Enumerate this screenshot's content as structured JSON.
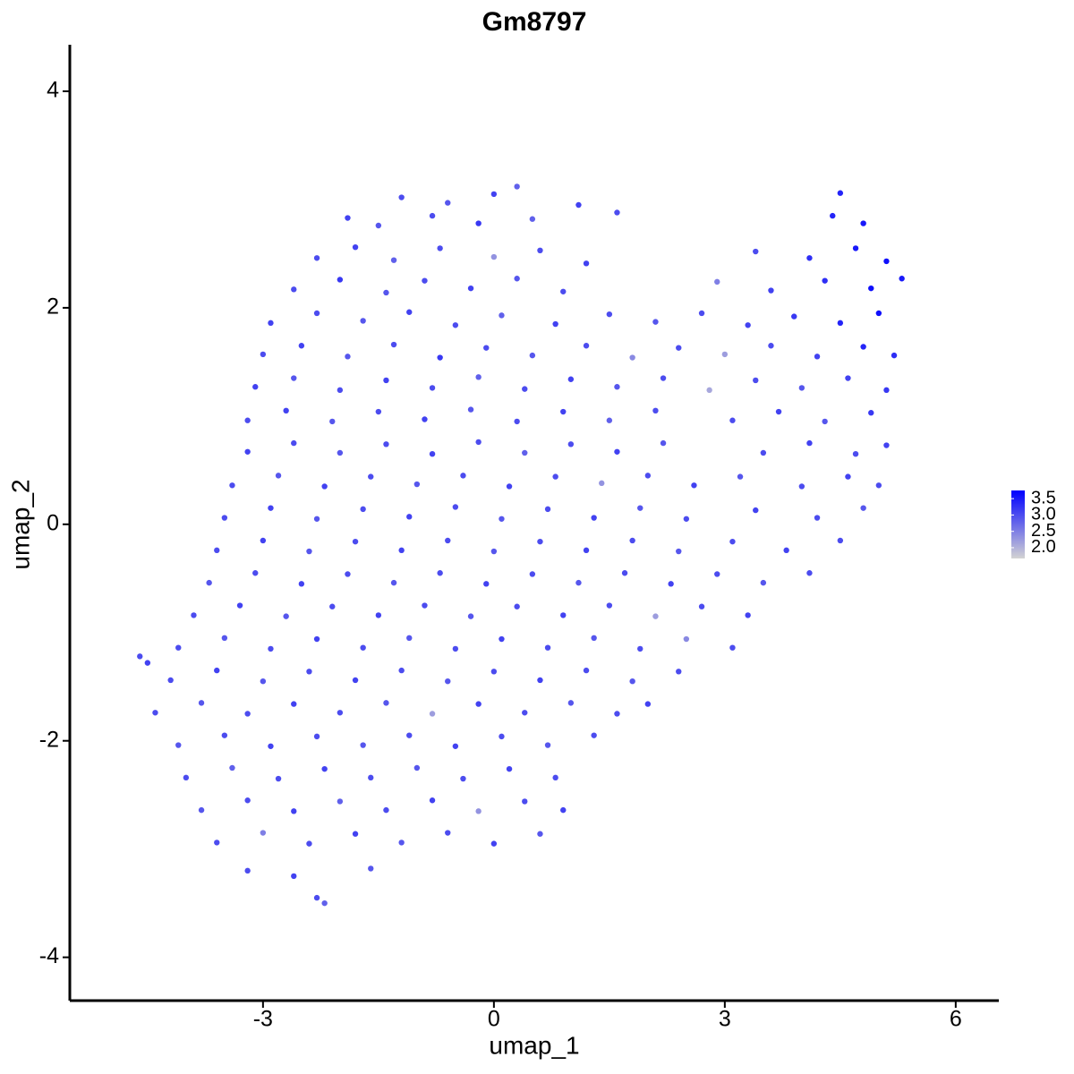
{
  "chart_data": {
    "type": "scatter",
    "title": "Gm8797",
    "x_label": "umap_1",
    "y_label": "umap_2",
    "xlim": [
      -5.51,
      6.56
    ],
    "ylim": [
      -4.4,
      4.43
    ],
    "xticks": [
      -3,
      0,
      3,
      6
    ],
    "yticks": [
      -4,
      -2,
      0,
      2,
      4
    ],
    "color_scale": {
      "lim": [
        1.67,
        3.75
      ],
      "low": "#d3d3d3",
      "high": "#0000ff",
      "ticks": [
        {
          "value": 2,
          "label": "2.0"
        },
        2.5,
        {
          "value": 3,
          "label": "3.0"
        },
        3.5
      ]
    },
    "points": [
      [
        -1.2,
        3.02,
        3.0
      ],
      [
        -0.6,
        2.97,
        2.9
      ],
      [
        0.0,
        3.05,
        3.1
      ],
      [
        0.3,
        3.12,
        2.8
      ],
      [
        4.5,
        3.06,
        3.4
      ],
      [
        -1.9,
        2.83,
        3.1
      ],
      [
        -1.5,
        2.76,
        2.9
      ],
      [
        -0.8,
        2.85,
        3.0
      ],
      [
        -0.2,
        2.78,
        3.2
      ],
      [
        0.5,
        2.82,
        2.8
      ],
      [
        1.1,
        2.95,
        3.1
      ],
      [
        1.6,
        2.88,
        3.0
      ],
      [
        4.4,
        2.85,
        3.4
      ],
      [
        4.8,
        2.78,
        3.5
      ],
      [
        -2.3,
        2.46,
        3.0
      ],
      [
        -1.8,
        2.56,
        3.1
      ],
      [
        -1.3,
        2.44,
        2.8
      ],
      [
        -0.7,
        2.55,
        3.0
      ],
      [
        0.0,
        2.47,
        2.3
      ],
      [
        0.6,
        2.53,
        3.0
      ],
      [
        1.2,
        2.41,
        3.1
      ],
      [
        3.4,
        2.52,
        3.0
      ],
      [
        4.1,
        2.46,
        3.3
      ],
      [
        4.7,
        2.55,
        3.5
      ],
      [
        5.1,
        2.43,
        3.6
      ],
      [
        -2.6,
        2.17,
        3.0
      ],
      [
        -2.0,
        2.26,
        3.2
      ],
      [
        -1.4,
        2.14,
        2.9
      ],
      [
        -0.9,
        2.25,
        3.0
      ],
      [
        -0.3,
        2.18,
        3.1
      ],
      [
        0.3,
        2.27,
        2.9
      ],
      [
        0.9,
        2.15,
        3.0
      ],
      [
        2.9,
        2.24,
        2.5
      ],
      [
        3.6,
        2.16,
        3.1
      ],
      [
        4.3,
        2.25,
        3.3
      ],
      [
        4.9,
        2.18,
        3.6
      ],
      [
        5.3,
        2.27,
        3.5
      ],
      [
        -2.9,
        1.86,
        3.1
      ],
      [
        -2.3,
        1.95,
        3.0
      ],
      [
        -1.7,
        1.88,
        2.9
      ],
      [
        -1.1,
        1.96,
        3.1
      ],
      [
        -0.5,
        1.84,
        3.0
      ],
      [
        0.1,
        1.93,
        2.8
      ],
      [
        0.8,
        1.85,
        3.1
      ],
      [
        1.5,
        1.94,
        3.0
      ],
      [
        2.1,
        1.87,
        2.9
      ],
      [
        2.7,
        1.95,
        3.0
      ],
      [
        3.3,
        1.84,
        3.1
      ],
      [
        3.9,
        1.92,
        3.2
      ],
      [
        4.5,
        1.86,
        3.4
      ],
      [
        5.0,
        1.95,
        3.6
      ],
      [
        -3.0,
        1.57,
        3.0
      ],
      [
        -2.5,
        1.65,
        3.1
      ],
      [
        -1.9,
        1.55,
        2.9
      ],
      [
        -1.3,
        1.66,
        3.0
      ],
      [
        -0.7,
        1.54,
        3.2
      ],
      [
        -0.1,
        1.63,
        3.0
      ],
      [
        0.5,
        1.56,
        2.9
      ],
      [
        1.2,
        1.65,
        3.0
      ],
      [
        1.8,
        1.54,
        2.4
      ],
      [
        2.4,
        1.63,
        3.0
      ],
      [
        3.0,
        1.57,
        2.2
      ],
      [
        3.6,
        1.65,
        3.0
      ],
      [
        4.2,
        1.55,
        3.1
      ],
      [
        4.8,
        1.64,
        3.4
      ],
      [
        5.2,
        1.56,
        3.3
      ],
      [
        -3.1,
        1.27,
        3.1
      ],
      [
        -2.6,
        1.35,
        2.9
      ],
      [
        -2.0,
        1.24,
        3.0
      ],
      [
        -1.4,
        1.33,
        3.1
      ],
      [
        -0.8,
        1.26,
        3.0
      ],
      [
        -0.2,
        1.36,
        2.8
      ],
      [
        0.4,
        1.25,
        3.0
      ],
      [
        1.0,
        1.34,
        3.1
      ],
      [
        1.6,
        1.27,
        2.9
      ],
      [
        2.2,
        1.35,
        3.0
      ],
      [
        2.8,
        1.24,
        2.1
      ],
      [
        3.4,
        1.33,
        3.0
      ],
      [
        4.0,
        1.26,
        2.9
      ],
      [
        4.6,
        1.35,
        3.1
      ],
      [
        5.1,
        1.24,
        3.2
      ],
      [
        -3.2,
        0.96,
        3.0
      ],
      [
        -2.7,
        1.05,
        3.1
      ],
      [
        -2.1,
        0.95,
        2.9
      ],
      [
        -1.5,
        1.04,
        3.0
      ],
      [
        -0.9,
        0.97,
        3.1
      ],
      [
        -0.3,
        1.06,
        2.9
      ],
      [
        0.3,
        0.95,
        3.0
      ],
      [
        0.9,
        1.04,
        3.1
      ],
      [
        1.5,
        0.96,
        2.8
      ],
      [
        2.1,
        1.05,
        3.0
      ],
      [
        3.1,
        0.96,
        3.0
      ],
      [
        3.7,
        1.04,
        3.1
      ],
      [
        4.3,
        0.95,
        2.9
      ],
      [
        4.9,
        1.03,
        3.2
      ],
      [
        -3.2,
        0.67,
        3.1
      ],
      [
        -2.6,
        0.75,
        3.0
      ],
      [
        -2.0,
        0.66,
        2.9
      ],
      [
        -1.4,
        0.74,
        3.0
      ],
      [
        -0.8,
        0.65,
        3.1
      ],
      [
        -0.2,
        0.76,
        3.0
      ],
      [
        0.4,
        0.66,
        2.8
      ],
      [
        1.0,
        0.74,
        3.0
      ],
      [
        1.6,
        0.67,
        3.1
      ],
      [
        2.2,
        0.75,
        2.9
      ],
      [
        3.5,
        0.66,
        3.0
      ],
      [
        4.1,
        0.75,
        3.1
      ],
      [
        4.7,
        0.65,
        3.0
      ],
      [
        5.1,
        0.73,
        3.1
      ],
      [
        -3.4,
        0.36,
        3.0
      ],
      [
        -2.8,
        0.45,
        2.9
      ],
      [
        -2.2,
        0.35,
        3.1
      ],
      [
        -1.6,
        0.44,
        3.0
      ],
      [
        -1.0,
        0.37,
        2.9
      ],
      [
        -0.4,
        0.45,
        3.0
      ],
      [
        0.2,
        0.35,
        3.1
      ],
      [
        0.8,
        0.44,
        3.0
      ],
      [
        1.4,
        0.38,
        2.3
      ],
      [
        2.0,
        0.45,
        3.0
      ],
      [
        2.6,
        0.36,
        3.1
      ],
      [
        3.2,
        0.44,
        2.9
      ],
      [
        4.0,
        0.35,
        3.0
      ],
      [
        4.6,
        0.44,
        3.1
      ],
      [
        5.0,
        0.36,
        3.0
      ],
      [
        -3.5,
        0.06,
        3.0
      ],
      [
        -2.9,
        0.15,
        3.1
      ],
      [
        -2.3,
        0.05,
        2.9
      ],
      [
        -1.7,
        0.14,
        3.0
      ],
      [
        -1.1,
        0.07,
        3.1
      ],
      [
        -0.5,
        0.16,
        3.0
      ],
      [
        0.1,
        0.05,
        2.9
      ],
      [
        0.7,
        0.14,
        3.0
      ],
      [
        1.3,
        0.06,
        3.1
      ],
      [
        1.9,
        0.15,
        2.9
      ],
      [
        2.5,
        0.05,
        3.0
      ],
      [
        3.4,
        0.13,
        3.1
      ],
      [
        4.2,
        0.06,
        3.0
      ],
      [
        4.8,
        0.15,
        2.9
      ],
      [
        -3.6,
        -0.24,
        3.0
      ],
      [
        -3.0,
        -0.15,
        3.1
      ],
      [
        -2.4,
        -0.25,
        2.9
      ],
      [
        -1.8,
        -0.16,
        3.0
      ],
      [
        -1.2,
        -0.24,
        3.1
      ],
      [
        -0.6,
        -0.15,
        3.0
      ],
      [
        0.0,
        -0.25,
        2.9
      ],
      [
        0.6,
        -0.16,
        3.0
      ],
      [
        1.2,
        -0.24,
        3.1
      ],
      [
        1.8,
        -0.15,
        3.0
      ],
      [
        2.4,
        -0.25,
        2.9
      ],
      [
        3.1,
        -0.16,
        3.0
      ],
      [
        3.8,
        -0.24,
        3.1
      ],
      [
        4.5,
        -0.15,
        3.0
      ],
      [
        -3.7,
        -0.54,
        2.9
      ],
      [
        -3.1,
        -0.45,
        3.0
      ],
      [
        -2.5,
        -0.55,
        3.1
      ],
      [
        -1.9,
        -0.46,
        3.0
      ],
      [
        -1.3,
        -0.54,
        2.9
      ],
      [
        -0.7,
        -0.45,
        3.0
      ],
      [
        -0.1,
        -0.55,
        3.1
      ],
      [
        0.5,
        -0.46,
        3.0
      ],
      [
        1.1,
        -0.54,
        2.9
      ],
      [
        1.7,
        -0.45,
        3.0
      ],
      [
        2.3,
        -0.55,
        3.1
      ],
      [
        2.9,
        -0.46,
        3.0
      ],
      [
        3.5,
        -0.54,
        2.9
      ],
      [
        4.1,
        -0.45,
        3.0
      ],
      [
        -3.9,
        -0.84,
        3.0
      ],
      [
        -3.3,
        -0.75,
        3.1
      ],
      [
        -2.7,
        -0.85,
        2.9
      ],
      [
        -2.1,
        -0.76,
        3.0
      ],
      [
        -1.5,
        -0.84,
        3.1
      ],
      [
        -0.9,
        -0.75,
        3.0
      ],
      [
        -0.3,
        -0.85,
        2.9
      ],
      [
        0.3,
        -0.76,
        3.0
      ],
      [
        0.9,
        -0.84,
        3.1
      ],
      [
        1.5,
        -0.75,
        3.0
      ],
      [
        2.1,
        -0.85,
        2.2
      ],
      [
        2.7,
        -0.76,
        3.0
      ],
      [
        3.3,
        -0.84,
        3.1
      ],
      [
        -4.1,
        -1.14,
        3.0
      ],
      [
        -3.5,
        -1.05,
        2.9
      ],
      [
        -2.9,
        -1.15,
        3.0
      ],
      [
        -2.3,
        -1.06,
        3.1
      ],
      [
        -1.7,
        -1.14,
        3.0
      ],
      [
        -1.1,
        -1.05,
        2.9
      ],
      [
        -0.5,
        -1.15,
        3.0
      ],
      [
        0.1,
        -1.06,
        3.1
      ],
      [
        0.7,
        -1.14,
        3.0
      ],
      [
        1.3,
        -1.05,
        2.9
      ],
      [
        1.9,
        -1.15,
        3.0
      ],
      [
        2.5,
        -1.06,
        2.4
      ],
      [
        3.1,
        -1.14,
        3.0
      ],
      [
        -4.6,
        -1.22,
        3.0
      ],
      [
        -4.5,
        -1.28,
        3.1
      ],
      [
        -4.2,
        -1.44,
        3.0
      ],
      [
        -3.6,
        -1.35,
        3.1
      ],
      [
        -3.0,
        -1.45,
        2.9
      ],
      [
        -2.4,
        -1.36,
        3.0
      ],
      [
        -1.8,
        -1.44,
        3.1
      ],
      [
        -1.2,
        -1.35,
        3.0
      ],
      [
        -0.6,
        -1.45,
        2.9
      ],
      [
        0.0,
        -1.36,
        3.0
      ],
      [
        0.6,
        -1.44,
        3.1
      ],
      [
        1.2,
        -1.35,
        3.0
      ],
      [
        1.8,
        -1.45,
        2.9
      ],
      [
        2.4,
        -1.36,
        3.0
      ],
      [
        -4.4,
        -1.74,
        3.0
      ],
      [
        -3.8,
        -1.65,
        2.9
      ],
      [
        -3.2,
        -1.75,
        3.0
      ],
      [
        -2.6,
        -1.66,
        3.1
      ],
      [
        -2.0,
        -1.74,
        3.0
      ],
      [
        -1.4,
        -1.65,
        2.9
      ],
      [
        -0.8,
        -1.75,
        2.2
      ],
      [
        -0.2,
        -1.66,
        3.1
      ],
      [
        0.4,
        -1.74,
        3.0
      ],
      [
        1.0,
        -1.65,
        2.9
      ],
      [
        1.6,
        -1.75,
        3.0
      ],
      [
        2.0,
        -1.66,
        3.1
      ],
      [
        -4.1,
        -2.04,
        2.9
      ],
      [
        -3.5,
        -1.95,
        3.0
      ],
      [
        -2.9,
        -2.05,
        3.1
      ],
      [
        -2.3,
        -1.96,
        3.0
      ],
      [
        -1.7,
        -2.04,
        2.9
      ],
      [
        -1.1,
        -1.95,
        3.0
      ],
      [
        -0.5,
        -2.05,
        3.1
      ],
      [
        0.1,
        -1.96,
        3.0
      ],
      [
        0.7,
        -2.04,
        2.9
      ],
      [
        1.3,
        -1.95,
        3.0
      ],
      [
        -4.0,
        -2.34,
        3.0
      ],
      [
        -3.4,
        -2.25,
        2.8
      ],
      [
        -2.8,
        -2.35,
        3.0
      ],
      [
        -2.2,
        -2.26,
        3.1
      ],
      [
        -1.6,
        -2.34,
        3.0
      ],
      [
        -1.0,
        -2.25,
        2.9
      ],
      [
        -0.4,
        -2.35,
        3.0
      ],
      [
        0.2,
        -2.26,
        3.1
      ],
      [
        0.8,
        -2.34,
        3.0
      ],
      [
        -3.8,
        -2.64,
        2.9
      ],
      [
        -3.2,
        -2.55,
        3.0
      ],
      [
        -2.6,
        -2.65,
        3.1
      ],
      [
        -2.0,
        -2.56,
        2.8
      ],
      [
        -1.4,
        -2.64,
        3.0
      ],
      [
        -0.8,
        -2.55,
        3.1
      ],
      [
        -0.2,
        -2.65,
        2.3
      ],
      [
        0.4,
        -2.56,
        3.0
      ],
      [
        0.9,
        -2.64,
        3.1
      ],
      [
        -3.6,
        -2.94,
        3.0
      ],
      [
        -3.0,
        -2.85,
        2.5
      ],
      [
        -2.4,
        -2.95,
        3.0
      ],
      [
        -1.8,
        -2.86,
        3.1
      ],
      [
        -1.2,
        -2.94,
        2.9
      ],
      [
        -0.6,
        -2.85,
        3.0
      ],
      [
        0.0,
        -2.95,
        3.1
      ],
      [
        0.6,
        -2.86,
        2.9
      ],
      [
        -3.2,
        -3.2,
        3.0
      ],
      [
        -2.6,
        -3.25,
        3.1
      ],
      [
        -1.6,
        -3.18,
        2.9
      ],
      [
        -2.3,
        -3.45,
        3.0
      ],
      [
        -2.2,
        -3.5,
        2.8
      ]
    ]
  }
}
